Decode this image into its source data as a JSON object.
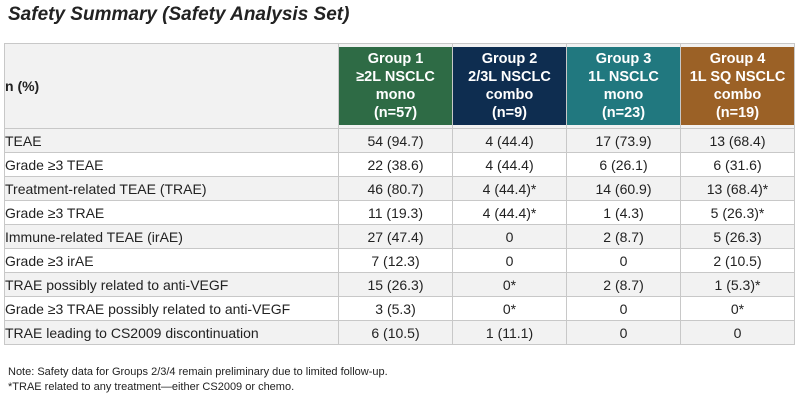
{
  "title": "Safety Summary (Safety Analysis Set)",
  "header_label": "n (%)",
  "groups": [
    {
      "name": "Group 1",
      "line": "≥2L NSCLC",
      "regimen": "mono",
      "n": "(n=57)",
      "color": "#2e6b45"
    },
    {
      "name": "Group 2",
      "line": "2/3L NSCLC",
      "regimen": "combo",
      "n": "(n=9)",
      "color": "#0e2d50"
    },
    {
      "name": "Group 3",
      "line": "1L NSCLC",
      "regimen": "mono",
      "n": "(n=23)",
      "color": "#21787f"
    },
    {
      "name": "Group 4",
      "line": "1L SQ NSCLC",
      "regimen": "combo",
      "n": "(n=19)",
      "color": "#9b6126"
    }
  ],
  "rows": [
    {
      "label": "TEAE",
      "values": [
        "54 (94.7)",
        "4 (44.4)",
        "17 (73.9)",
        "13 (68.4)"
      ]
    },
    {
      "label": "Grade ≥3 TEAE",
      "values": [
        "22 (38.6)",
        "4 (44.4)",
        "6 (26.1)",
        "6 (31.6)"
      ]
    },
    {
      "label": "Treatment-related TEAE (TRAE)",
      "values": [
        "46 (80.7)",
        "4 (44.4)*",
        "14 (60.9)",
        "13 (68.4)*"
      ]
    },
    {
      "label": "Grade ≥3 TRAE",
      "values": [
        "11 (19.3)",
        "4 (44.4)*",
        "1 (4.3)",
        "5 (26.3)*"
      ]
    },
    {
      "label": "Immune-related TEAE (irAE)",
      "values": [
        "27 (47.4)",
        "0",
        "2 (8.7)",
        "5 (26.3)"
      ]
    },
    {
      "label": "Grade ≥3 irAE",
      "values": [
        "7 (12.3)",
        "0",
        "0",
        "2 (10.5)"
      ]
    },
    {
      "label": "TRAE possibly related to anti-VEGF",
      "values": [
        "15 (26.3)",
        "0*",
        "2 (8.7)",
        "1 (5.3)*"
      ]
    },
    {
      "label": "Grade ≥3 TRAE possibly related to anti-VEGF",
      "values": [
        "3 (5.3)",
        "0*",
        "0",
        "0*"
      ]
    },
    {
      "label": "TRAE leading to CS2009 discontinuation",
      "values": [
        "6 (10.5)",
        "1 (11.1)",
        "0",
        "0"
      ]
    }
  ],
  "notes": [
    "Note: Safety data for Groups 2/3/4 remain preliminary due to limited follow-up.",
    "*TRAE related to any treatment—either CS2009 or chemo."
  ]
}
